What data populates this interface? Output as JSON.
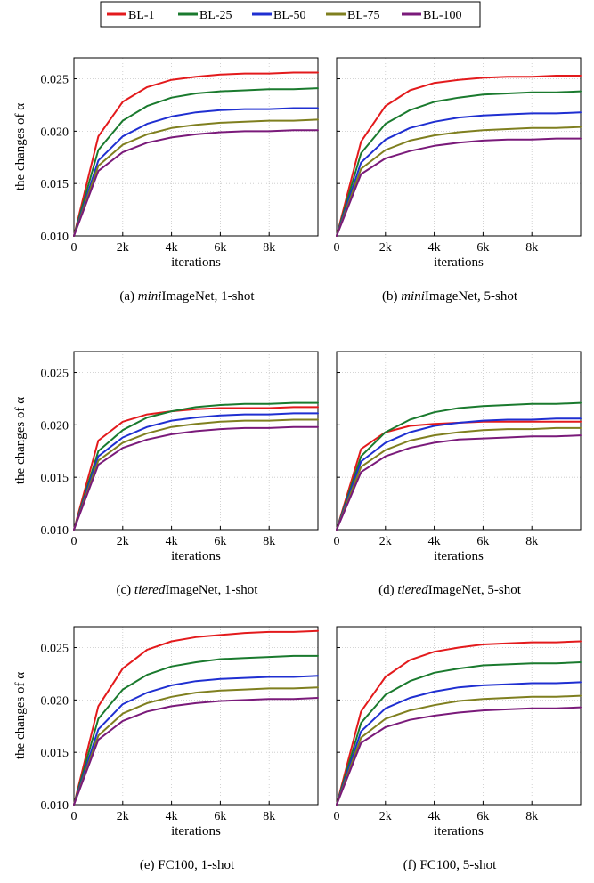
{
  "legend": {
    "position": "top-center",
    "entries": [
      {
        "name": "BL-1",
        "color": "#e31a1c"
      },
      {
        "name": "BL-25",
        "color": "#1a7a2e"
      },
      {
        "name": "BL-50",
        "color": "#1f2fd1"
      },
      {
        "name": "BL-75",
        "color": "#7f7f1f"
      },
      {
        "name": "BL-100",
        "color": "#7a1a7a"
      }
    ]
  },
  "chart_data": [
    {
      "type": "line",
      "caption": {
        "prefix": "(a) ",
        "italic": "mini",
        "rest": "ImageNet, 1-shot"
      },
      "xlabel": "iterations",
      "ylabel": "the changes of α",
      "xlim": [
        0,
        10000
      ],
      "ylim": [
        0.01,
        0.027
      ],
      "x_ticks": [
        "0",
        "2k",
        "4k",
        "6k",
        "8k"
      ],
      "y_ticks": [
        "0.010",
        "0.015",
        "0.020",
        "0.025"
      ],
      "grid": true,
      "x": [
        0,
        1000,
        2000,
        3000,
        4000,
        5000,
        6000,
        7000,
        8000,
        9000,
        10000
      ],
      "series": [
        {
          "name": "BL-1",
          "values": [
            0.01,
            0.0195,
            0.0228,
            0.0242,
            0.0249,
            0.0252,
            0.0254,
            0.0255,
            0.0255,
            0.0256,
            0.0256
          ]
        },
        {
          "name": "BL-25",
          "values": [
            0.01,
            0.0182,
            0.021,
            0.0224,
            0.0232,
            0.0236,
            0.0238,
            0.0239,
            0.024,
            0.024,
            0.0241
          ]
        },
        {
          "name": "BL-50",
          "values": [
            0.01,
            0.0172,
            0.0195,
            0.0207,
            0.0214,
            0.0218,
            0.022,
            0.0221,
            0.0221,
            0.0222,
            0.0222
          ]
        },
        {
          "name": "BL-75",
          "values": [
            0.01,
            0.0167,
            0.0187,
            0.0197,
            0.0203,
            0.0206,
            0.0208,
            0.0209,
            0.021,
            0.021,
            0.0211
          ]
        },
        {
          "name": "BL-100",
          "values": [
            0.01,
            0.0162,
            0.018,
            0.0189,
            0.0194,
            0.0197,
            0.0199,
            0.02,
            0.02,
            0.0201,
            0.0201
          ]
        }
      ]
    },
    {
      "type": "line",
      "caption": {
        "prefix": "(b) ",
        "italic": "mini",
        "rest": "ImageNet, 5-shot"
      },
      "xlabel": "iterations",
      "ylabel": "",
      "xlim": [
        0,
        10000
      ],
      "ylim": [
        0.01,
        0.027
      ],
      "x_ticks": [
        "0",
        "2k",
        "4k",
        "6k",
        "8k"
      ],
      "y_ticks": [
        "",
        "",
        "",
        ""
      ],
      "grid": true,
      "x": [
        0,
        1000,
        2000,
        3000,
        4000,
        5000,
        6000,
        7000,
        8000,
        9000,
        10000
      ],
      "series": [
        {
          "name": "BL-1",
          "values": [
            0.01,
            0.019,
            0.0224,
            0.0239,
            0.0246,
            0.0249,
            0.0251,
            0.0252,
            0.0252,
            0.0253,
            0.0253
          ]
        },
        {
          "name": "BL-25",
          "values": [
            0.01,
            0.0179,
            0.0207,
            0.022,
            0.0228,
            0.0232,
            0.0235,
            0.0236,
            0.0237,
            0.0237,
            0.0238
          ]
        },
        {
          "name": "BL-50",
          "values": [
            0.01,
            0.017,
            0.0192,
            0.0203,
            0.0209,
            0.0213,
            0.0215,
            0.0216,
            0.0217,
            0.0217,
            0.0218
          ]
        },
        {
          "name": "BL-75",
          "values": [
            0.01,
            0.0164,
            0.0182,
            0.0191,
            0.0196,
            0.0199,
            0.0201,
            0.0202,
            0.0203,
            0.0203,
            0.0204
          ]
        },
        {
          "name": "BL-100",
          "values": [
            0.01,
            0.0159,
            0.0174,
            0.0181,
            0.0186,
            0.0189,
            0.0191,
            0.0192,
            0.0192,
            0.0193,
            0.0193
          ]
        }
      ]
    },
    {
      "type": "line",
      "caption": {
        "prefix": "(c) ",
        "italic": "tiered",
        "rest": "ImageNet, 1-shot"
      },
      "xlabel": "iterations",
      "ylabel": "the changes of α",
      "xlim": [
        0,
        10000
      ],
      "ylim": [
        0.01,
        0.027
      ],
      "x_ticks": [
        "0",
        "2k",
        "4k",
        "6k",
        "8k"
      ],
      "y_ticks": [
        "0.010",
        "0.015",
        "0.020",
        "0.025"
      ],
      "grid": true,
      "x": [
        0,
        1000,
        2000,
        3000,
        4000,
        5000,
        6000,
        7000,
        8000,
        9000,
        10000
      ],
      "series": [
        {
          "name": "BL-1",
          "values": [
            0.01,
            0.0185,
            0.0203,
            0.021,
            0.0213,
            0.0215,
            0.0216,
            0.0216,
            0.0216,
            0.0217,
            0.0217
          ]
        },
        {
          "name": "BL-25",
          "values": [
            0.01,
            0.0175,
            0.0195,
            0.0207,
            0.0213,
            0.0217,
            0.0219,
            0.022,
            0.022,
            0.0221,
            0.0221
          ]
        },
        {
          "name": "BL-50",
          "values": [
            0.01,
            0.017,
            0.0188,
            0.0198,
            0.0204,
            0.0207,
            0.0209,
            0.021,
            0.021,
            0.0211,
            0.0211
          ]
        },
        {
          "name": "BL-75",
          "values": [
            0.01,
            0.0166,
            0.0183,
            0.0192,
            0.0198,
            0.0201,
            0.0203,
            0.0204,
            0.0204,
            0.0205,
            0.0205
          ]
        },
        {
          "name": "BL-100",
          "values": [
            0.01,
            0.0162,
            0.0178,
            0.0186,
            0.0191,
            0.0194,
            0.0196,
            0.0197,
            0.0197,
            0.0198,
            0.0198
          ]
        }
      ]
    },
    {
      "type": "line",
      "caption": {
        "prefix": "(d) ",
        "italic": "tiered",
        "rest": "ImageNet, 5-shot"
      },
      "xlabel": "iterations",
      "ylabel": "",
      "xlim": [
        0,
        10000
      ],
      "ylim": [
        0.01,
        0.027
      ],
      "x_ticks": [
        "0",
        "2k",
        "4k",
        "6k",
        "8k"
      ],
      "y_ticks": [
        "",
        "",
        "",
        ""
      ],
      "grid": true,
      "x": [
        0,
        1000,
        2000,
        3000,
        4000,
        5000,
        6000,
        7000,
        8000,
        9000,
        10000
      ],
      "series": [
        {
          "name": "BL-1",
          "values": [
            0.01,
            0.0177,
            0.0193,
            0.0199,
            0.0201,
            0.0202,
            0.0203,
            0.0203,
            0.0203,
            0.0203,
            0.0203
          ]
        },
        {
          "name": "BL-25",
          "values": [
            0.01,
            0.017,
            0.0193,
            0.0205,
            0.0212,
            0.0216,
            0.0218,
            0.0219,
            0.022,
            0.022,
            0.0221
          ]
        },
        {
          "name": "BL-50",
          "values": [
            0.01,
            0.0165,
            0.0183,
            0.0193,
            0.0199,
            0.0202,
            0.0204,
            0.0205,
            0.0205,
            0.0206,
            0.0206
          ]
        },
        {
          "name": "BL-75",
          "values": [
            0.01,
            0.016,
            0.0176,
            0.0185,
            0.019,
            0.0193,
            0.0195,
            0.0196,
            0.0196,
            0.0197,
            0.0197
          ]
        },
        {
          "name": "BL-100",
          "values": [
            0.01,
            0.0155,
            0.017,
            0.0178,
            0.0183,
            0.0186,
            0.0187,
            0.0188,
            0.0189,
            0.0189,
            0.019
          ]
        }
      ]
    },
    {
      "type": "line",
      "caption": {
        "prefix": "(e) ",
        "italic": "",
        "rest": "FC100, 1-shot"
      },
      "xlabel": "iterations",
      "ylabel": "the changes of α",
      "xlim": [
        0,
        10000
      ],
      "ylim": [
        0.01,
        0.027
      ],
      "x_ticks": [
        "0",
        "2k",
        "4k",
        "6k",
        "8k"
      ],
      "y_ticks": [
        "0.010",
        "0.015",
        "0.020",
        "0.025"
      ],
      "grid": true,
      "x": [
        0,
        1000,
        2000,
        3000,
        4000,
        5000,
        6000,
        7000,
        8000,
        9000,
        10000
      ],
      "series": [
        {
          "name": "BL-1",
          "values": [
            0.01,
            0.0194,
            0.023,
            0.0248,
            0.0256,
            0.026,
            0.0262,
            0.0264,
            0.0265,
            0.0265,
            0.0266
          ]
        },
        {
          "name": "BL-25",
          "values": [
            0.01,
            0.0182,
            0.021,
            0.0224,
            0.0232,
            0.0236,
            0.0239,
            0.024,
            0.0241,
            0.0242,
            0.0242
          ]
        },
        {
          "name": "BL-50",
          "values": [
            0.01,
            0.0172,
            0.0196,
            0.0207,
            0.0214,
            0.0218,
            0.022,
            0.0221,
            0.0222,
            0.0222,
            0.0223
          ]
        },
        {
          "name": "BL-75",
          "values": [
            0.01,
            0.0166,
            0.0187,
            0.0197,
            0.0203,
            0.0207,
            0.0209,
            0.021,
            0.0211,
            0.0211,
            0.0212
          ]
        },
        {
          "name": "BL-100",
          "values": [
            0.01,
            0.0162,
            0.018,
            0.0189,
            0.0194,
            0.0197,
            0.0199,
            0.02,
            0.0201,
            0.0201,
            0.0202
          ]
        }
      ]
    },
    {
      "type": "line",
      "caption": {
        "prefix": "(f) ",
        "italic": "",
        "rest": "FC100, 5-shot"
      },
      "xlabel": "iterations",
      "ylabel": "",
      "xlim": [
        0,
        10000
      ],
      "ylim": [
        0.01,
        0.027
      ],
      "x_ticks": [
        "0",
        "2k",
        "4k",
        "6k",
        "8k"
      ],
      "y_ticks": [
        "",
        "",
        "",
        ""
      ],
      "grid": true,
      "x": [
        0,
        1000,
        2000,
        3000,
        4000,
        5000,
        6000,
        7000,
        8000,
        9000,
        10000
      ],
      "series": [
        {
          "name": "BL-1",
          "values": [
            0.01,
            0.0189,
            0.0222,
            0.0238,
            0.0246,
            0.025,
            0.0253,
            0.0254,
            0.0255,
            0.0255,
            0.0256
          ]
        },
        {
          "name": "BL-25",
          "values": [
            0.01,
            0.0178,
            0.0205,
            0.0218,
            0.0226,
            0.023,
            0.0233,
            0.0234,
            0.0235,
            0.0235,
            0.0236
          ]
        },
        {
          "name": "BL-50",
          "values": [
            0.01,
            0.017,
            0.0192,
            0.0202,
            0.0208,
            0.0212,
            0.0214,
            0.0215,
            0.0216,
            0.0216,
            0.0217
          ]
        },
        {
          "name": "BL-75",
          "values": [
            0.01,
            0.0164,
            0.0182,
            0.019,
            0.0195,
            0.0199,
            0.0201,
            0.0202,
            0.0203,
            0.0203,
            0.0204
          ]
        },
        {
          "name": "BL-100",
          "values": [
            0.01,
            0.0159,
            0.0174,
            0.0181,
            0.0185,
            0.0188,
            0.019,
            0.0191,
            0.0192,
            0.0192,
            0.0193
          ]
        }
      ]
    }
  ]
}
